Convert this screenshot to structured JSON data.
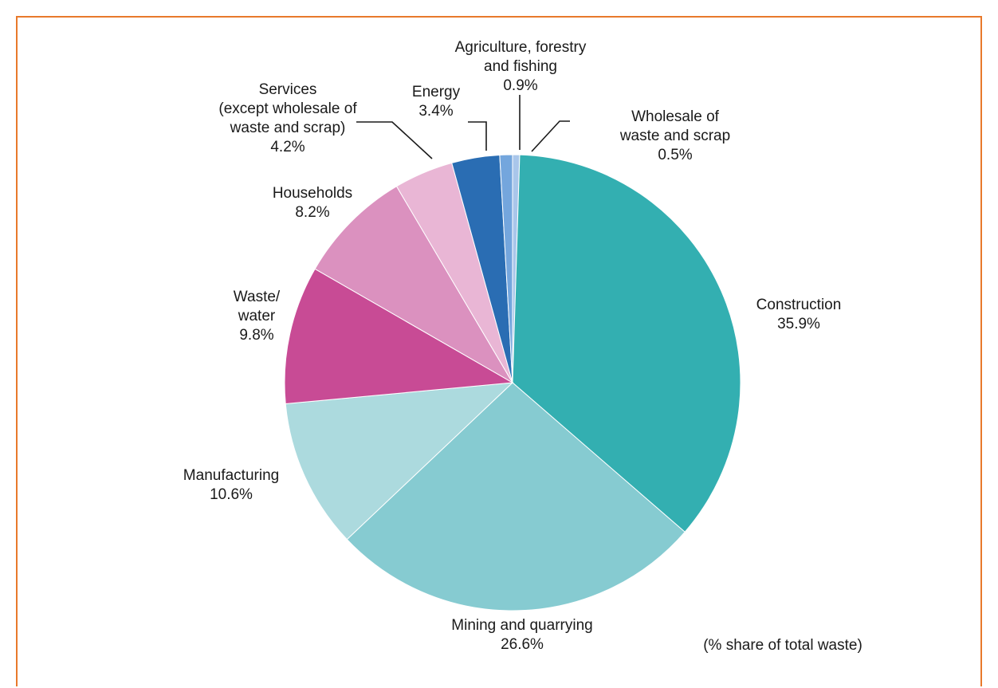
{
  "chart_data": {
    "type": "pie",
    "unit_note": "(% share of total waste)",
    "slices": [
      {
        "label_lines": [
          "Wholesale of",
          "waste and scrap"
        ],
        "value": 0.5,
        "value_label": "0.5%",
        "color": "#a9c6ea"
      },
      {
        "label_lines": [
          "Construction"
        ],
        "value": 35.9,
        "value_label": "35.9%",
        "color": "#33afb1"
      },
      {
        "label_lines": [
          "Mining and quarrying"
        ],
        "value": 26.6,
        "value_label": "26.6%",
        "color": "#86cbd1"
      },
      {
        "label_lines": [
          "Manufacturing"
        ],
        "value": 10.6,
        "value_label": "10.6%",
        "color": "#acdade"
      },
      {
        "label_lines": [
          "Waste/",
          "water"
        ],
        "value": 9.8,
        "value_label": "9.8%",
        "color": "#c84b95"
      },
      {
        "label_lines": [
          "Households"
        ],
        "value": 8.2,
        "value_label": "8.2%",
        "color": "#db91bf"
      },
      {
        "label_lines": [
          "Services",
          "(except wholesale of",
          "waste and scrap)"
        ],
        "value": 4.2,
        "value_label": "4.2%",
        "color": "#e9b6d5"
      },
      {
        "label_lines": [
          "Energy"
        ],
        "value": 3.4,
        "value_label": "3.4%",
        "color": "#2a6db3"
      },
      {
        "label_lines": [
          "Agriculture, forestry",
          "and fishing"
        ],
        "value": 0.9,
        "value_label": "0.9%",
        "color": "#74a6dd"
      }
    ]
  }
}
